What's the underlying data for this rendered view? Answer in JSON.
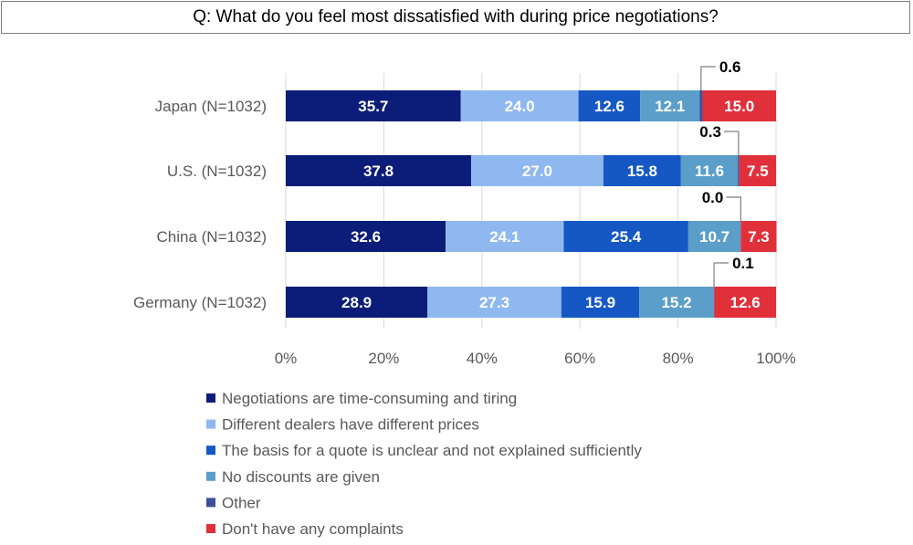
{
  "chart_data": {
    "type": "bar",
    "orientation": "horizontal",
    "stacked": true,
    "title": "Q: What do you feel most dissatisfied with during price negotiations?",
    "categories": [
      "Japan (N=1032)",
      "U.S. (N=1032)",
      "China (N=1032)",
      "Germany (N=1032)"
    ],
    "series": [
      {
        "name": "Negotiations are time-consuming and tiring",
        "color": "#0b1d78",
        "values": [
          35.7,
          37.8,
          32.6,
          28.9
        ]
      },
      {
        "name": "Different dealers have different prices",
        "color": "#8fb8f0",
        "values": [
          24.0,
          27.0,
          24.1,
          27.3
        ]
      },
      {
        "name": "The basis for a quote is unclear and not explained sufficiently",
        "color": "#1558c4",
        "values": [
          12.6,
          15.8,
          25.4,
          15.9
        ]
      },
      {
        "name": "No discounts are given",
        "color": "#5b9ec9",
        "values": [
          12.1,
          11.6,
          10.7,
          15.2
        ]
      },
      {
        "name": "Other",
        "color": "#3c4f9c",
        "values": [
          0.6,
          0.3,
          0.0,
          0.1
        ]
      },
      {
        "name": "Don't have any complaints",
        "color": "#e0303a",
        "values": [
          15.0,
          7.5,
          7.3,
          12.6
        ]
      }
    ],
    "value_labels": [
      [
        "35.7",
        "24.0",
        "12.6",
        "12.1",
        "0.6",
        "15.0"
      ],
      [
        "37.8",
        "27.0",
        "15.8",
        "11.6",
        "0.3",
        "7.5"
      ],
      [
        "32.6",
        "24.1",
        "25.4",
        "10.7",
        "0.0",
        "7.3"
      ],
      [
        "28.9",
        "27.3",
        "15.9",
        "15.2",
        "0.1",
        "12.6"
      ]
    ],
    "xlim": [
      0,
      100
    ],
    "xticks": [
      "0%",
      "20%",
      "40%",
      "60%",
      "80%",
      "100%"
    ],
    "grid": "vertical",
    "legend_position": "bottom"
  }
}
